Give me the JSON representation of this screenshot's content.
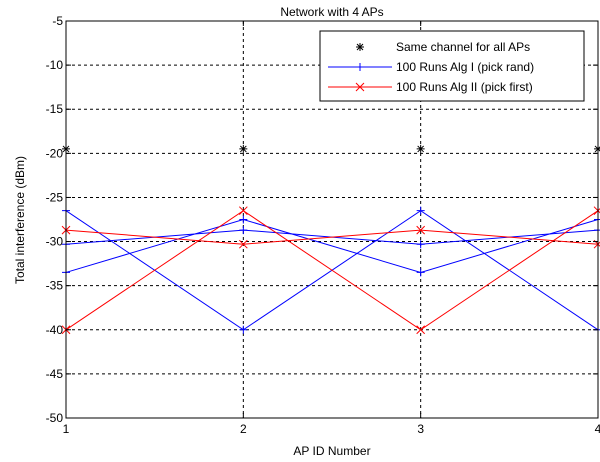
{
  "chart_data": {
    "type": "line",
    "title": "Network with 4 APs",
    "xlabel": "AP ID Number",
    "ylabel": "Total interference (dBm)",
    "xlim": [
      1,
      4
    ],
    "ylim": [
      -50,
      -5
    ],
    "x_ticks": [
      "1",
      "2",
      "3",
      "4"
    ],
    "y_ticks": [
      "-5",
      "-10",
      "-15",
      "-20",
      "-25",
      "-30",
      "-35",
      "-40",
      "-45",
      "-50"
    ],
    "grid": true,
    "legend_position": "top-right",
    "x": [
      1,
      2,
      3,
      4
    ],
    "series": [
      {
        "name": "Same channel for all APs",
        "color": "#000000",
        "marker": "asterisk",
        "line": false,
        "runs": [
          [
            -19.5,
            -19.5,
            -19.5,
            -19.5
          ]
        ]
      },
      {
        "name": "100 Runs Alg I (pick rand)",
        "color": "#0000ff",
        "marker": "plus",
        "line": true,
        "runs": [
          [
            -26.5,
            -40.0,
            -26.5,
            -40.0
          ],
          [
            -33.5,
            -27.5,
            -33.5,
            -27.5
          ],
          [
            -30.3,
            -28.7,
            -30.3,
            -28.7
          ]
        ]
      },
      {
        "name": "100 Runs Alg II (pick first)",
        "color": "#ff0000",
        "marker": "x",
        "line": true,
        "runs": [
          [
            -40.0,
            -26.5,
            -40.0,
            -26.5
          ],
          [
            -28.7,
            -30.3,
            -28.7,
            -30.3
          ]
        ]
      }
    ]
  }
}
